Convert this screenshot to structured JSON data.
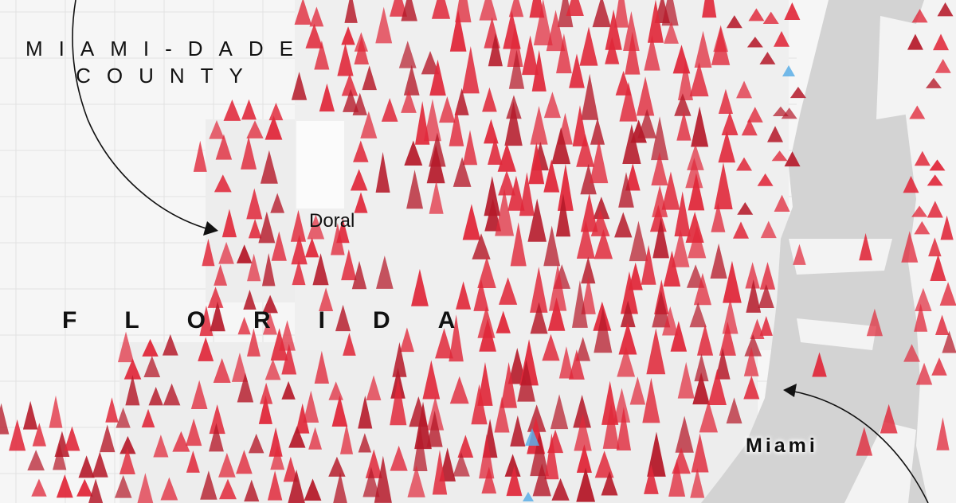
{
  "labels": {
    "county_line1": "MIAMI-DADE",
    "county_line2": "COUNTY",
    "state": "FLORIDA",
    "city_doral": "Doral",
    "city_miami": "Miami"
  },
  "colors": {
    "land": "#f6f6f6",
    "developed": "#ececec",
    "water": "#d3d3d3",
    "marker_red": "#e0283a",
    "marker_dark_red": "#b51a2a",
    "marker_blue": "#5aaee6",
    "annotation": "#111111"
  },
  "markers": {
    "shape": "triangle",
    "primary_color": "red",
    "secondary_color": "blue"
  }
}
